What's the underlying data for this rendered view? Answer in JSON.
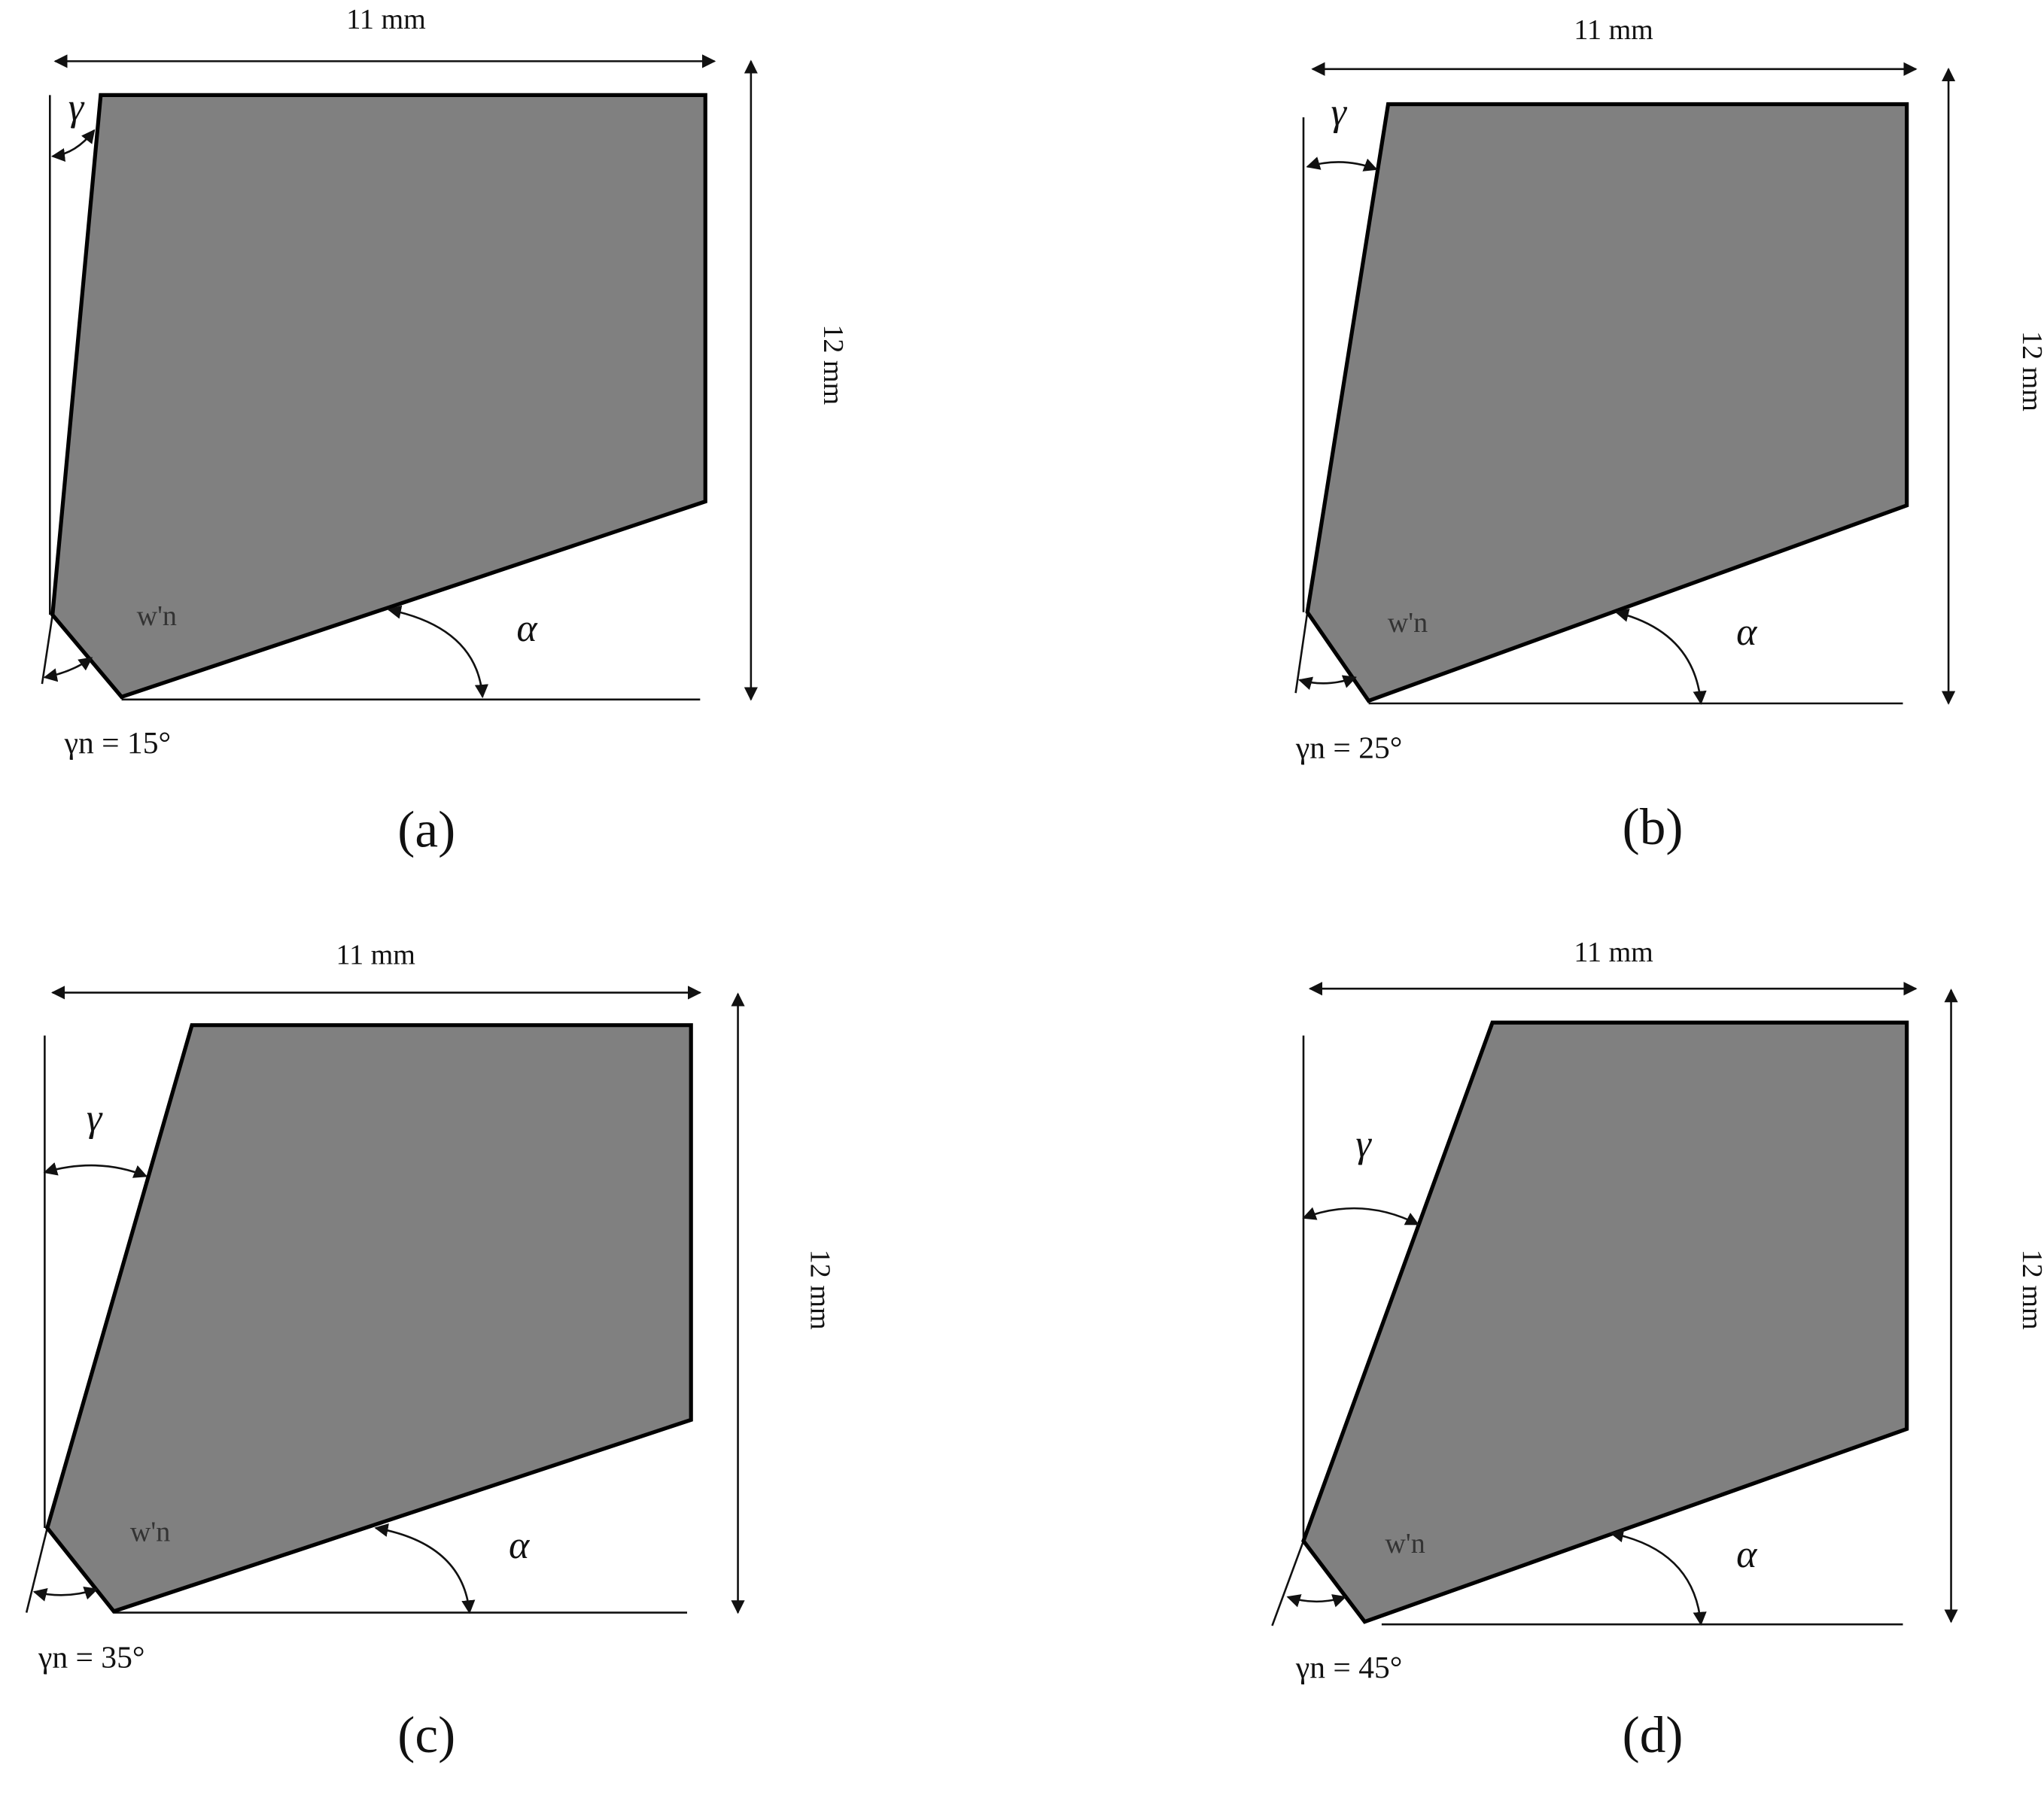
{
  "panels": [
    {
      "caption": "(a)",
      "width_label": "11 mm",
      "height_label": "12 mm",
      "rake_label": "γ",
      "clearance_label": "α",
      "chamfer_label": "w'n",
      "chamfer_angle_label": "γn = 15°"
    },
    {
      "caption": "(b)",
      "width_label": "11 mm",
      "height_label": "12 mm",
      "rake_label": "γ",
      "clearance_label": "α",
      "chamfer_label": "w'n",
      "chamfer_angle_label": "γn = 25°"
    },
    {
      "caption": "(c)",
      "width_label": "11 mm",
      "height_label": "12 mm",
      "rake_label": "γ",
      "clearance_label": "α",
      "chamfer_label": "w'n",
      "chamfer_angle_label": "γn = 35°"
    },
    {
      "caption": "(d)",
      "width_label": "11 mm",
      "height_label": "12 mm",
      "rake_label": "γ",
      "clearance_label": "α",
      "chamfer_label": "w'n",
      "chamfer_angle_label": "γn = 45°"
    }
  ]
}
